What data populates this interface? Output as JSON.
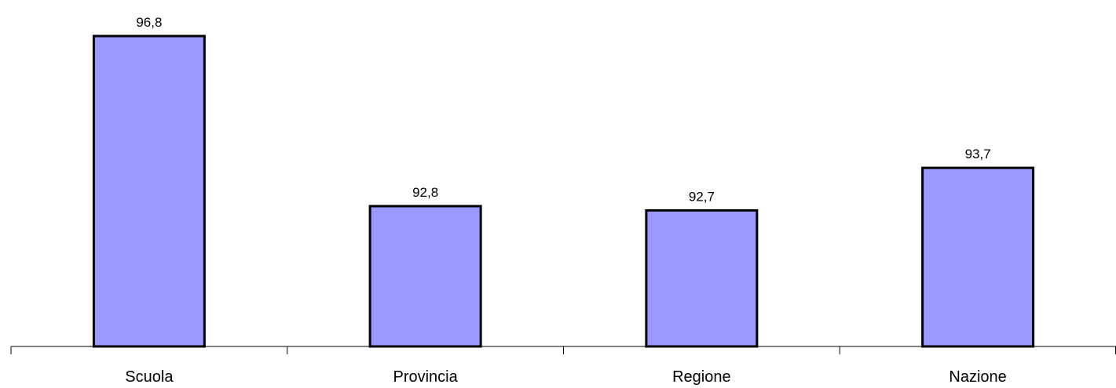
{
  "chart_data": {
    "type": "bar",
    "categories": [
      "Scuola",
      "Provincia",
      "Regione",
      "Nazione"
    ],
    "values": [
      96.8,
      92.8,
      92.7,
      93.7
    ],
    "value_labels": [
      "96,8",
      "92,8",
      "92,7",
      "93,7"
    ],
    "ylim": [
      89.5,
      97.5
    ],
    "grid": false,
    "legend": "none",
    "colors": {
      "bar_fill": "#9999ff",
      "bar_stroke": "#000000",
      "axis": "#000000"
    }
  }
}
